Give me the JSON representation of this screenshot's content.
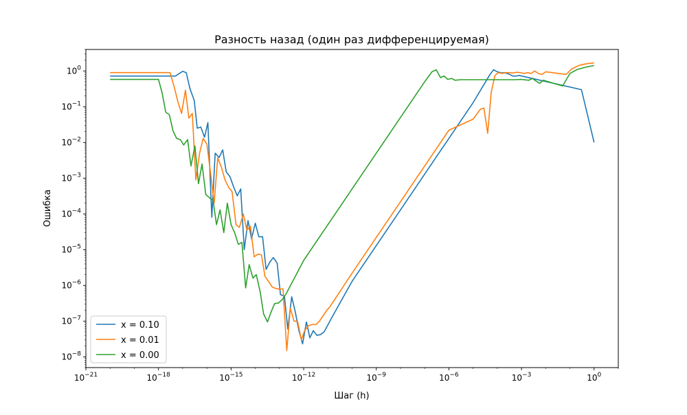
{
  "chart_data": {
    "type": "line",
    "title": "Разность назад (один раз дифференцируемая)",
    "xlabel": "Шаг (h)",
    "ylabel": "Ошибка",
    "xscale": "log",
    "yscale": "log",
    "xlim": [
      1e-21,
      10
    ],
    "ylim": [
      5e-09,
      4
    ],
    "grid": false,
    "legend_position": "lower-left",
    "x_ticks": [
      {
        "value": 1e-21,
        "base": "10",
        "exp": "−21"
      },
      {
        "value": 1e-18,
        "base": "10",
        "exp": "−18"
      },
      {
        "value": 1e-15,
        "base": "10",
        "exp": "−15"
      },
      {
        "value": 1e-12,
        "base": "10",
        "exp": "−12"
      },
      {
        "value": 1e-09,
        "base": "10",
        "exp": "−9"
      },
      {
        "value": 1e-06,
        "base": "10",
        "exp": "−6"
      },
      {
        "value": 0.001,
        "base": "10",
        "exp": "−3"
      },
      {
        "value": 1,
        "base": "10",
        "exp": "0"
      }
    ],
    "y_ticks": [
      {
        "value": 1,
        "base": "10",
        "exp": "0"
      },
      {
        "value": 0.1,
        "base": "10",
        "exp": "−1"
      },
      {
        "value": 0.01,
        "base": "10",
        "exp": "−2"
      },
      {
        "value": 0.001,
        "base": "10",
        "exp": "−3"
      },
      {
        "value": 0.0001,
        "base": "10",
        "exp": "−4"
      },
      {
        "value": 1e-05,
        "base": "10",
        "exp": "−5"
      },
      {
        "value": 1e-06,
        "base": "10",
        "exp": "−6"
      },
      {
        "value": 1e-07,
        "base": "10",
        "exp": "−7"
      },
      {
        "value": 1e-08,
        "base": "10",
        "exp": "−8"
      }
    ],
    "series": [
      {
        "name": "x = 0.10",
        "color": "#1f77b4",
        "points": [
          [
            1e-20,
            0.72
          ],
          [
            5e-18,
            0.72
          ],
          [
            1e-17,
            0.98
          ],
          [
            1.4e-17,
            0.9
          ],
          [
            2e-17,
            0.32
          ],
          [
            3e-17,
            0.15
          ],
          [
            4e-17,
            0.025
          ],
          [
            5.6e-17,
            0.027
          ],
          [
            8e-17,
            0.014
          ],
          [
            1.1e-16,
            0.036
          ],
          [
            1.6e-16,
            8e-05
          ],
          [
            2.2e-16,
            0.005
          ],
          [
            3.2e-16,
            0.0038
          ],
          [
            4.5e-16,
            0.0062
          ],
          [
            6.3e-16,
            0.0015
          ],
          [
            9e-16,
            0.0011
          ],
          [
            1.3e-15,
            0.00055
          ],
          [
            1.8e-15,
            0.00032
          ],
          [
            2.5e-15,
            0.0005
          ],
          [
            3.5e-15,
            1e-05
          ],
          [
            5e-15,
            6.5e-05
          ],
          [
            7e-15,
            2e-05
          ],
          [
            1e-14,
            5.5e-05
          ],
          [
            1.4e-14,
            2.3e-05
          ],
          [
            2e-14,
            2.3e-05
          ],
          [
            2.8e-14,
            2.8e-06
          ],
          [
            4e-14,
            4.5e-06
          ],
          [
            5.6e-14,
            6e-06
          ],
          [
            8e-14,
            4.2e-06
          ],
          [
            1.1e-13,
            5.5e-07
          ],
          [
            1.6e-13,
            5e-07
          ],
          [
            2.2e-13,
            6e-08
          ],
          [
            3.2e-13,
            4.8e-07
          ],
          [
            4.5e-13,
            1.8e-07
          ],
          [
            6.3e-13,
            5.5e-08
          ],
          [
            9e-13,
            2.3e-08
          ],
          [
            1.3e-12,
            9.5e-08
          ],
          [
            1.8e-12,
            3.4e-08
          ],
          [
            2.5e-12,
            5.4e-08
          ],
          [
            3.5e-12,
            4e-08
          ],
          [
            5e-12,
            4.2e-08
          ],
          [
            7e-12,
            5e-08
          ],
          [
            1.4e-11,
            1.2e-07
          ],
          [
            1e-10,
            1.3e-06
          ],
          [
            1e-09,
            1.3e-05
          ],
          [
            1e-08,
            0.00013
          ],
          [
            1e-07,
            0.0013
          ],
          [
            1e-06,
            0.013
          ],
          [
            1e-05,
            0.13
          ],
          [
            3e-05,
            0.45
          ],
          [
            5e-05,
            0.8
          ],
          [
            7e-05,
            1.08
          ],
          [
            0.0001,
            0.95
          ],
          [
            0.00015,
            0.88
          ],
          [
            0.0002,
            0.9
          ],
          [
            0.0003,
            0.82
          ],
          [
            0.00045,
            0.72
          ],
          [
            0.0006,
            0.72
          ],
          [
            0.0008,
            0.75
          ],
          [
            0.3,
            0.3
          ],
          [
            1,
            0.01
          ]
        ]
      },
      {
        "name": "x = 0.01",
        "color": "#ff7f0e",
        "points": [
          [
            1e-20,
            0.9
          ],
          [
            3e-18,
            0.9
          ],
          [
            4.5e-18,
            0.35
          ],
          [
            6.3e-18,
            0.14
          ],
          [
            9e-18,
            0.065
          ],
          [
            1.3e-17,
            0.29
          ],
          [
            1.8e-17,
            0.048
          ],
          [
            2.5e-17,
            0.065
          ],
          [
            3.5e-17,
            0.0009
          ],
          [
            5e-17,
            0.005
          ],
          [
            7e-17,
            0.013
          ],
          [
            1e-16,
            0.009
          ],
          [
            1.4e-16,
            0.0015
          ],
          [
            2e-16,
            0.0002
          ],
          [
            2.8e-16,
            0.0037
          ],
          [
            4e-16,
            0.002
          ],
          [
            5.6e-16,
            0.0009
          ],
          [
            8e-16,
            0.00055
          ],
          [
            1.1e-15,
            0.00042
          ],
          [
            1.6e-15,
            5e-05
          ],
          [
            2.2e-15,
            4.2e-05
          ],
          [
            3.2e-15,
            0.0001
          ],
          [
            4.5e-15,
            3.5e-05
          ],
          [
            6.3e-15,
            4.5e-05
          ],
          [
            9e-15,
            6.3e-06
          ],
          [
            1.3e-14,
            7.5e-06
          ],
          [
            1.8e-14,
            7.2e-06
          ],
          [
            2.5e-14,
            1.8e-06
          ],
          [
            3.5e-14,
            1.3e-06
          ],
          [
            5e-14,
            9e-07
          ],
          [
            7e-14,
            8.2e-07
          ],
          [
            1e-13,
            7.8e-07
          ],
          [
            1.4e-13,
            8e-07
          ],
          [
            2e-13,
            1.5e-08
          ],
          [
            2.8e-13,
            2.3e-07
          ],
          [
            4e-13,
            1e-07
          ],
          [
            5.6e-13,
            9.8e-08
          ],
          [
            8e-13,
            3e-08
          ],
          [
            1.1e-12,
            5.5e-08
          ],
          [
            1.6e-12,
            7.5e-08
          ],
          [
            2.2e-12,
            8e-08
          ],
          [
            3.2e-12,
            8e-08
          ],
          [
            4.5e-12,
            1e-07
          ],
          [
            6.3e-12,
            1.4e-07
          ],
          [
            9e-12,
            2e-07
          ],
          [
            1.2e-11,
            2.5e-07
          ],
          [
            1e-10,
            2.2e-06
          ],
          [
            1e-09,
            2.2e-05
          ],
          [
            1e-08,
            0.00022
          ],
          [
            1e-07,
            0.0022
          ],
          [
            1e-06,
            0.022
          ],
          [
            1e-05,
            0.045
          ],
          [
            2e-05,
            0.085
          ],
          [
            2.8e-05,
            0.092
          ],
          [
            4e-05,
            0.018
          ],
          [
            5.6e-05,
            0.25
          ],
          [
            8e-05,
            0.75
          ],
          [
            0.00011,
            0.9
          ],
          [
            0.00016,
            0.85
          ],
          [
            0.00022,
            0.9
          ],
          [
            0.00032,
            0.9
          ],
          [
            0.00045,
            0.88
          ],
          [
            0.00063,
            0.92
          ],
          [
            0.0009,
            0.9
          ],
          [
            0.0013,
            0.85
          ],
          [
            0.0018,
            0.9
          ],
          [
            0.0025,
            0.85
          ],
          [
            0.0035,
            1.0
          ],
          [
            0.005,
            0.85
          ],
          [
            0.007,
            0.8
          ],
          [
            0.01,
            0.95
          ],
          [
            0.07,
            0.8
          ],
          [
            0.12,
            1.15
          ],
          [
            0.25,
            1.45
          ],
          [
            0.5,
            1.6
          ],
          [
            1,
            1.68
          ]
        ]
      },
      {
        "name": "x = 0.00",
        "color": "#2ca02c",
        "points": [
          [
            1e-20,
            0.58
          ],
          [
            1e-18,
            0.58
          ],
          [
            1.4e-18,
            0.25
          ],
          [
            2e-18,
            0.07
          ],
          [
            2.8e-18,
            0.06
          ],
          [
            4e-18,
            0.021
          ],
          [
            5.6e-18,
            0.013
          ],
          [
            8e-18,
            0.012
          ],
          [
            1.1e-17,
            0.0085
          ],
          [
            1.6e-17,
            0.012
          ],
          [
            2.2e-17,
            0.0022
          ],
          [
            3.2e-17,
            0.008
          ],
          [
            4.5e-17,
            0.0007
          ],
          [
            6.3e-17,
            0.0025
          ],
          [
            9e-17,
            0.00035
          ],
          [
            1.3e-16,
            0.00028
          ],
          [
            1.8e-16,
            0.00024
          ],
          [
            2.5e-16,
            5e-05
          ],
          [
            3.5e-16,
            0.00013
          ],
          [
            5e-16,
            3e-05
          ],
          [
            7e-16,
            0.0002
          ],
          [
            1e-15,
            5e-05
          ],
          [
            1.4e-15,
            3e-05
          ],
          [
            2e-15,
            1.4e-05
          ],
          [
            2.8e-15,
            1.6e-05
          ],
          [
            4e-15,
            8.5e-07
          ],
          [
            5.6e-15,
            3.8e-06
          ],
          [
            8e-15,
            1.6e-06
          ],
          [
            1.1e-14,
            2e-06
          ],
          [
            1.6e-14,
            6.5e-07
          ],
          [
            2.2e-14,
            1.6e-07
          ],
          [
            3.2e-14,
            9.5e-08
          ],
          [
            4.5e-14,
            1.8e-07
          ],
          [
            6.3e-14,
            3.1e-07
          ],
          [
            9e-14,
            3.2e-07
          ],
          [
            1.3e-13,
            4e-07
          ],
          [
            1.8e-13,
            5.5e-07
          ],
          [
            1e-12,
            5e-06
          ],
          [
            1e-11,
            5e-05
          ],
          [
            1e-10,
            0.0005
          ],
          [
            1e-09,
            0.005
          ],
          [
            1e-08,
            0.05
          ],
          [
            1e-07,
            0.5
          ],
          [
            2e-07,
            0.95
          ],
          [
            3e-07,
            1.08
          ],
          [
            4.5e-07,
            0.65
          ],
          [
            6.3e-07,
            0.72
          ],
          [
            9e-07,
            0.58
          ],
          [
            1.3e-06,
            0.62
          ],
          [
            1.8e-06,
            0.55
          ],
          [
            3e-06,
            0.57
          ],
          [
            0.0005,
            0.57
          ],
          [
            0.001,
            0.58
          ],
          [
            0.002,
            0.55
          ],
          [
            0.0028,
            0.62
          ],
          [
            0.004,
            0.52
          ],
          [
            0.0056,
            0.45
          ],
          [
            0.008,
            0.55
          ],
          [
            0.05,
            0.38
          ],
          [
            0.1,
            0.85
          ],
          [
            0.2,
            1.1
          ],
          [
            0.5,
            1.3
          ],
          [
            1,
            1.42
          ]
        ]
      }
    ]
  }
}
